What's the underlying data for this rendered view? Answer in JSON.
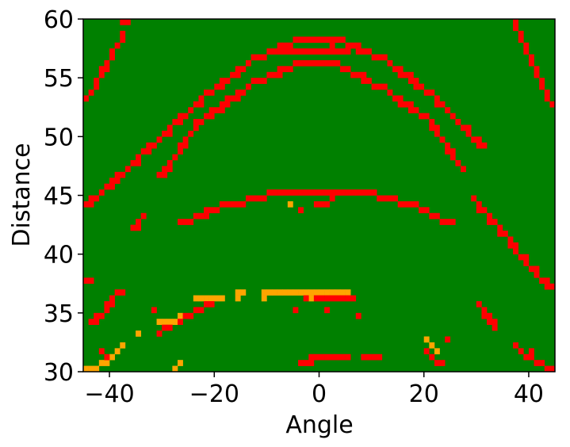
{
  "chart_data": {
    "type": "heatmap",
    "title": "",
    "xlabel": "Angle",
    "ylabel": "Distance",
    "xlim": [
      -45,
      45
    ],
    "ylim": [
      30,
      60
    ],
    "xticks": [
      -40,
      -20,
      0,
      20,
      40
    ],
    "yticks": [
      30,
      35,
      40,
      45,
      50,
      55,
      60
    ],
    "xtick_labels": [
      "−40",
      "−20",
      "0",
      "20",
      "40"
    ],
    "ytick_labels": [
      "30",
      "35",
      "40",
      "45",
      "50",
      "55",
      "60"
    ],
    "grid": false,
    "cell_size": {
      "angle": 1,
      "distance": 0.5
    },
    "colors": {
      "background": "#008000",
      "red": "#ff0000",
      "orange": "#ffa500"
    },
    "red_segments": [
      {
        "start": [
          -44.5,
          53.0
        ],
        "end": [
          -37.5,
          58.5
        ]
      },
      {
        "start": [
          -44.5,
          44.0
        ],
        "end": [
          -33.5,
          48.5
        ]
      },
      {
        "start": [
          -33.5,
          48.5
        ],
        "end": [
          -21.5,
          53.5
        ]
      },
      {
        "start": [
          -21.5,
          53.5
        ],
        "end": [
          -12.5,
          56.5
        ]
      },
      {
        "start": [
          -12.5,
          56.5
        ],
        "end": [
          -4.5,
          58.0
        ]
      },
      {
        "start": [
          -4.5,
          58.0
        ],
        "end": [
          4.5,
          58.0
        ]
      },
      {
        "start": [
          4.5,
          58.0
        ],
        "end": [
          12.5,
          56.5
        ]
      },
      {
        "start": [
          12.5,
          56.5
        ],
        "end": [
          21.5,
          53.5
        ]
      },
      {
        "start": [
          21.5,
          53.5
        ],
        "end": [
          31.5,
          49.0
        ]
      },
      {
        "start": [
          -7.5,
          57.0
        ],
        "end": [
          5.5,
          57.0
        ]
      },
      {
        "start": [
          -30.5,
          46.5
        ],
        "end": [
          -23.5,
          51.0
        ]
      },
      {
        "start": [
          -23.5,
          51.0
        ],
        "end": [
          -12.5,
          54.5
        ]
      },
      {
        "start": [
          -12.5,
          54.5
        ],
        "end": [
          -4.5,
          56.0
        ]
      },
      {
        "start": [
          -4.5,
          56.0
        ],
        "end": [
          3.5,
          56.0
        ]
      },
      {
        "start": [
          3.5,
          56.0
        ],
        "end": [
          12.5,
          54.0
        ]
      },
      {
        "start": [
          12.5,
          54.0
        ],
        "end": [
          20.5,
          51.5
        ]
      },
      {
        "start": [
          20.5,
          51.5
        ],
        "end": [
          27.5,
          47.0
        ]
      },
      {
        "start": [
          -26.5,
          42.5
        ],
        "end": [
          -18.5,
          44.0
        ]
      },
      {
        "start": [
          -18.5,
          44.0
        ],
        "end": [
          -9.5,
          45.0
        ]
      },
      {
        "start": [
          -9.5,
          45.0
        ],
        "end": [
          10.5,
          45.0
        ]
      },
      {
        "start": [
          10.5,
          45.0
        ],
        "end": [
          18.5,
          44.0
        ]
      },
      {
        "start": [
          18.5,
          44.0
        ],
        "end": [
          25.5,
          42.5
        ]
      },
      {
        "start": [
          -35.5,
          42.0
        ],
        "end": [
          -33.5,
          43.0
        ]
      },
      {
        "start": [
          -0.5,
          44.0
        ],
        "end": [
          2.5,
          44.5
        ]
      },
      {
        "start": [
          29.5,
          44.5
        ],
        "end": [
          44.5,
          37.0
        ]
      },
      {
        "start": [
          37.5,
          59.5
        ],
        "end": [
          44.5,
          52.5
        ]
      },
      {
        "start": [
          -43.5,
          34.0
        ],
        "end": [
          -38.5,
          36.5
        ]
      },
      {
        "start": [
          -29.5,
          33.5
        ],
        "end": [
          -19.5,
          36.0
        ]
      },
      {
        "start": [
          -2.5,
          36.0
        ],
        "end": [
          6.5,
          36.0
        ]
      },
      {
        "start": [
          30.5,
          35.5
        ],
        "end": [
          33.5,
          34.0
        ]
      },
      {
        "start": [
          37.5,
          32.0
        ],
        "end": [
          44.5,
          30.0
        ]
      },
      {
        "start": [
          -1.5,
          31.0
        ],
        "end": [
          5.5,
          31.0
        ]
      },
      {
        "start": [
          -3.5,
          30.5
        ],
        "end": [
          -1.5,
          30.5
        ]
      },
      {
        "start": [
          8.5,
          31.0
        ],
        "end": [
          11.5,
          31.0
        ]
      },
      {
        "start": [
          20.5,
          31.5
        ],
        "end": [
          23.5,
          30.5
        ]
      },
      {
        "start": [
          -41.5,
          31.5
        ],
        "end": [
          -39.5,
          31.0
        ]
      }
    ],
    "red_cells": [
      [
        -37.5,
        59.5
      ],
      [
        -36.5,
        59.5
      ],
      [
        -36.5,
        60.0
      ],
      [
        38.5,
        60.0
      ],
      [
        39.5,
        60.0
      ],
      [
        -44.5,
        37.5
      ],
      [
        -43.5,
        37.5
      ],
      [
        -4.5,
        35.0
      ],
      [
        1.5,
        35.0
      ],
      [
        7.5,
        34.5
      ],
      [
        -37.5,
        36.5
      ],
      [
        -30.5,
        33.0
      ],
      [
        -35.5,
        42.0
      ],
      [
        -3.5,
        43.5
      ],
      [
        0.5,
        44.0
      ],
      [
        -31.5,
        35.0
      ],
      [
        33.5,
        33.5
      ],
      [
        40.5,
        31.5
      ],
      [
        24.5,
        32.5
      ],
      [
        -7.5,
        57.5
      ],
      [
        2.5,
        57.5
      ],
      [
        -21.5,
        43.5
      ]
    ],
    "orange_segments": [
      {
        "start": [
          -10.5,
          36.5
        ],
        "end": [
          5.5,
          36.5
        ]
      },
      {
        "start": [
          -23.5,
          36.0
        ],
        "end": [
          -18.5,
          36.0
        ]
      },
      {
        "start": [
          -30.5,
          34.0
        ],
        "end": [
          -26.5,
          34.5
        ]
      },
      {
        "start": [
          -44.5,
          30.0
        ],
        "end": [
          -39.5,
          31.0
        ]
      }
    ],
    "orange_cells": [
      [
        -15.5,
        36.5
      ],
      [
        -14.5,
        36.5
      ],
      [
        -15.5,
        36.0
      ],
      [
        -34.5,
        33.0
      ],
      [
        -26.5,
        30.5
      ],
      [
        -27.5,
        30.0
      ],
      [
        -5.5,
        44.0
      ],
      [
        -1.5,
        36.0
      ],
      [
        20.5,
        32.5
      ],
      [
        21.5,
        32.0
      ],
      [
        22.5,
        31.5
      ],
      [
        -37.5,
        32.0
      ],
      [
        -38.5,
        31.5
      ],
      [
        -10.5,
        36.0
      ]
    ]
  }
}
